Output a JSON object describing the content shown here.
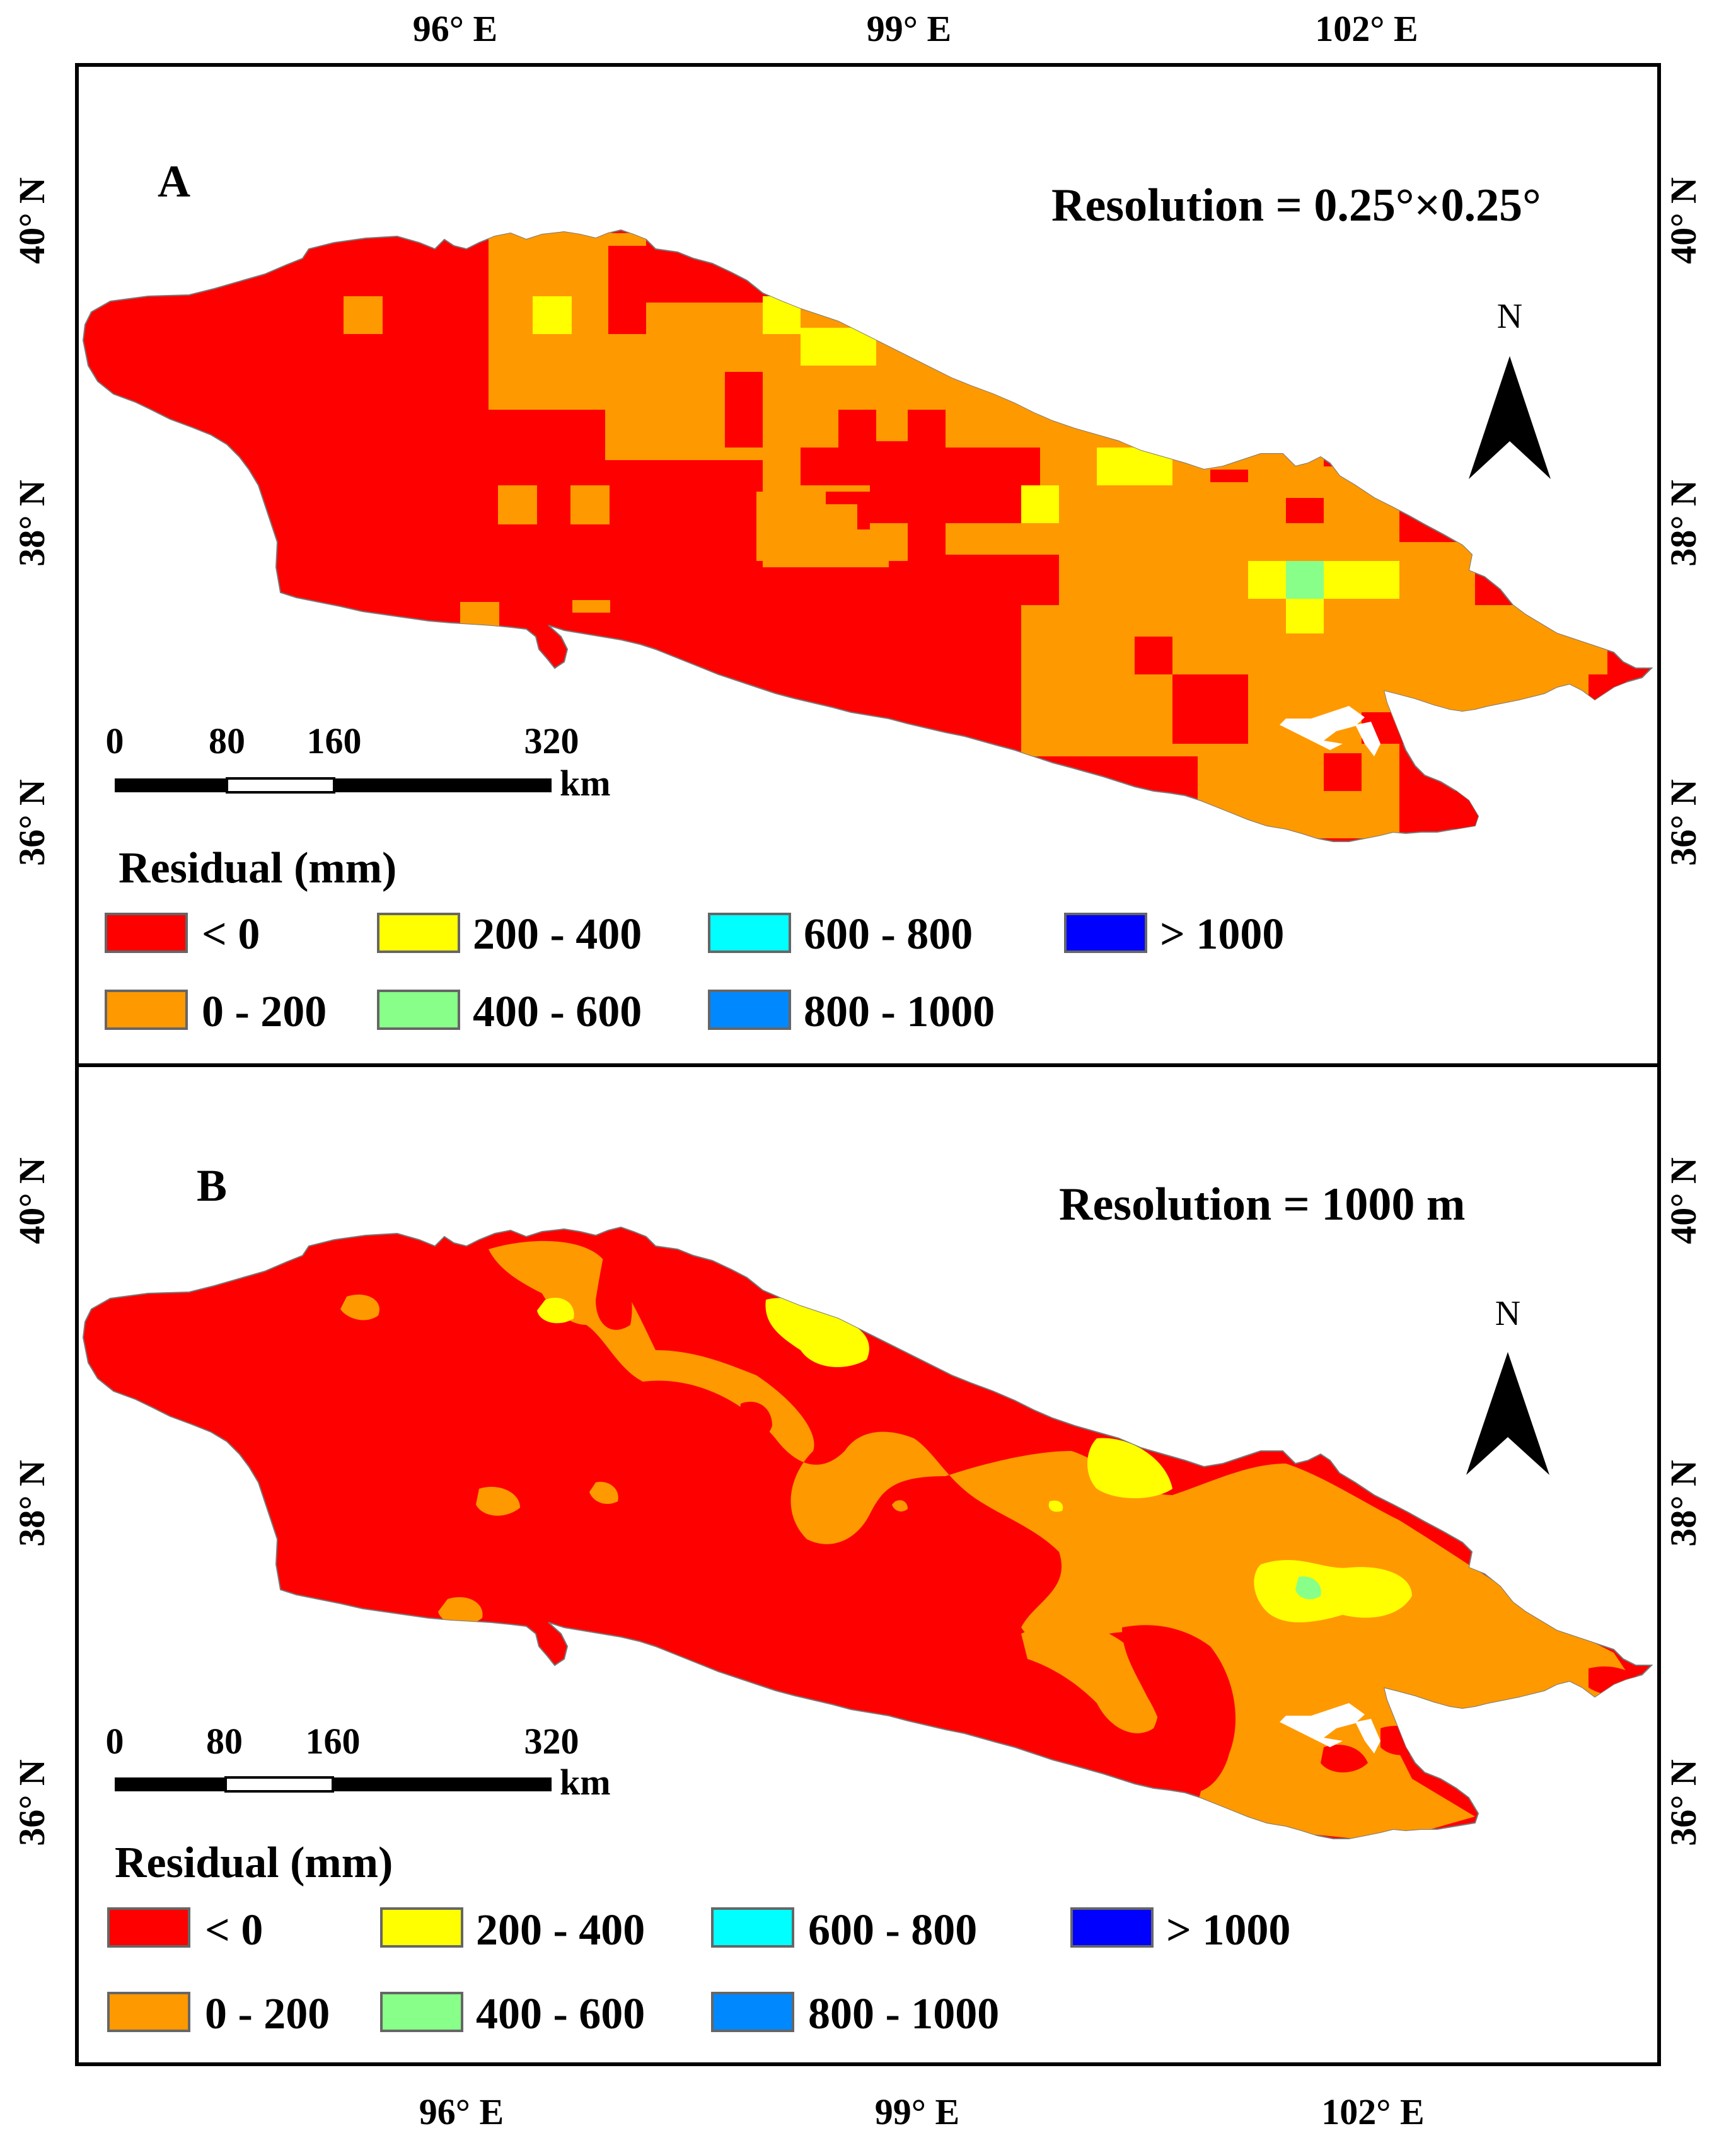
{
  "panels": [
    {
      "letter": "A",
      "resolution_label": "Resolution = 0.25°×0.25°",
      "map_type": "grid"
    },
    {
      "letter": "B",
      "resolution_label": "Resolution = 1000 m",
      "map_type": "smooth"
    }
  ],
  "axes": {
    "lon_ticks": [
      "96° E",
      "99° E",
      "102° E"
    ],
    "lat_ticks": [
      "40° N",
      "38° N",
      "36° N"
    ]
  },
  "north_arrow": {
    "label": "N"
  },
  "scale_bar": {
    "ticks": [
      "0",
      "80",
      "160",
      "320"
    ],
    "unit": "km"
  },
  "legend": {
    "title": "Residual (mm)",
    "items": [
      {
        "label": "< 0",
        "color": "#ff0000"
      },
      {
        "label": "0 - 200",
        "color": "#ff9900"
      },
      {
        "label": "200 - 400",
        "color": "#ffff00"
      },
      {
        "label": "400 - 600",
        "color": "#88ff88"
      },
      {
        "label": "600 - 800",
        "color": "#00ffff"
      },
      {
        "label": "800 - 1000",
        "color": "#0088ff"
      },
      {
        "label": "> 1000",
        "color": "#0000ff"
      }
    ]
  }
}
